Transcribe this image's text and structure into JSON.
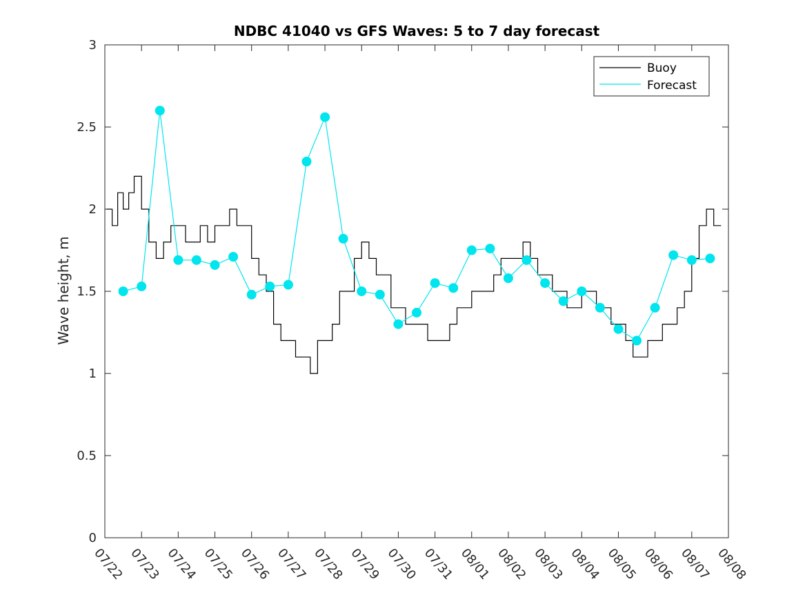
{
  "chart_data": {
    "type": "line",
    "title": "NDBC 41040 vs GFS Waves: 5 to 7 day forecast",
    "xlabel": "",
    "ylabel": "Wave height, m",
    "ylim": [
      0,
      3
    ],
    "yticks": [
      "0",
      "0.5",
      "1",
      "1.5",
      "2",
      "2.5",
      "3"
    ],
    "xticks": [
      "07/22",
      "07/23",
      "07/24",
      "07/25",
      "07/26",
      "07/27",
      "07/28",
      "07/29",
      "07/30",
      "07/31",
      "08/01",
      "08/02",
      "08/03",
      "08/04",
      "08/05",
      "08/06",
      "08/07",
      "08/08"
    ],
    "xlim_days": [
      0,
      17
    ],
    "grid": false,
    "legend_position": "top-right",
    "colors": {
      "buoy": "#000000",
      "forecast": "#00e5ee"
    },
    "legend": [
      {
        "name": "Buoy",
        "color": "#000000"
      },
      {
        "name": "Forecast",
        "color": "#00e5ee"
      }
    ],
    "series": [
      {
        "name": "Buoy",
        "color": "#000000",
        "x_days": [
          0.05,
          0.2,
          0.35,
          0.5,
          0.65,
          0.8,
          1.0,
          1.2,
          1.4,
          1.6,
          1.8,
          2.0,
          2.2,
          2.4,
          2.6,
          2.8,
          3.0,
          3.2,
          3.4,
          3.6,
          3.8,
          4.0,
          4.2,
          4.4,
          4.6,
          4.8,
          5.0,
          5.2,
          5.4,
          5.6,
          5.8,
          6.0,
          6.2,
          6.4,
          6.6,
          6.8,
          7.0,
          7.2,
          7.4,
          7.6,
          7.8,
          8.0,
          8.2,
          8.4,
          8.6,
          8.8,
          9.0,
          9.2,
          9.4,
          9.6,
          9.8,
          10.0,
          10.2,
          10.4,
          10.6,
          10.8,
          11.0,
          11.2,
          11.4,
          11.6,
          11.8,
          12.0,
          12.2,
          12.4,
          12.6,
          12.8,
          13.0,
          13.2,
          13.4,
          13.6,
          13.8,
          14.0,
          14.2,
          14.4,
          14.6,
          14.8,
          15.0,
          15.2,
          15.4,
          15.6,
          15.8,
          16.0,
          16.2,
          16.4,
          16.6,
          16.8
        ],
        "y": [
          2.0,
          1.9,
          2.1,
          2.0,
          2.1,
          2.2,
          2.0,
          1.8,
          1.7,
          1.8,
          1.9,
          1.9,
          1.8,
          1.8,
          1.9,
          1.8,
          1.9,
          1.9,
          2.0,
          1.9,
          1.9,
          1.7,
          1.6,
          1.5,
          1.3,
          1.2,
          1.2,
          1.1,
          1.1,
          1.0,
          1.2,
          1.2,
          1.3,
          1.5,
          1.5,
          1.7,
          1.8,
          1.7,
          1.6,
          1.6,
          1.4,
          1.4,
          1.3,
          1.3,
          1.3,
          1.2,
          1.2,
          1.2,
          1.3,
          1.4,
          1.4,
          1.5,
          1.5,
          1.5,
          1.6,
          1.7,
          1.7,
          1.7,
          1.8,
          1.7,
          1.6,
          1.6,
          1.5,
          1.5,
          1.4,
          1.4,
          1.5,
          1.5,
          1.4,
          1.4,
          1.3,
          1.3,
          1.2,
          1.1,
          1.1,
          1.2,
          1.2,
          1.3,
          1.3,
          1.4,
          1.5,
          1.7,
          1.9,
          2.0,
          1.9,
          1.9
        ]
      },
      {
        "name": "Forecast",
        "color": "#00e5ee",
        "x_days": [
          0.5,
          1.0,
          1.5,
          2.0,
          2.5,
          3.0,
          3.5,
          4.0,
          4.5,
          5.0,
          5.5,
          6.0,
          6.5,
          7.0,
          7.5,
          8.0,
          8.5,
          9.0,
          9.5,
          10.0,
          10.5,
          11.0,
          11.5,
          12.0,
          12.5,
          13.0,
          13.5,
          14.0,
          14.5,
          15.0,
          15.5,
          16.0,
          16.5
        ],
        "y": [
          1.5,
          1.53,
          2.6,
          1.69,
          1.69,
          1.66,
          1.71,
          1.48,
          1.53,
          1.54,
          2.29,
          2.56,
          1.82,
          1.5,
          1.48,
          1.3,
          1.37,
          1.55,
          1.52,
          1.75,
          1.76,
          1.58,
          1.69,
          1.55,
          1.44,
          1.5,
          1.4,
          1.27,
          1.2,
          1.4,
          1.72,
          1.69,
          1.7
        ]
      }
    ]
  }
}
